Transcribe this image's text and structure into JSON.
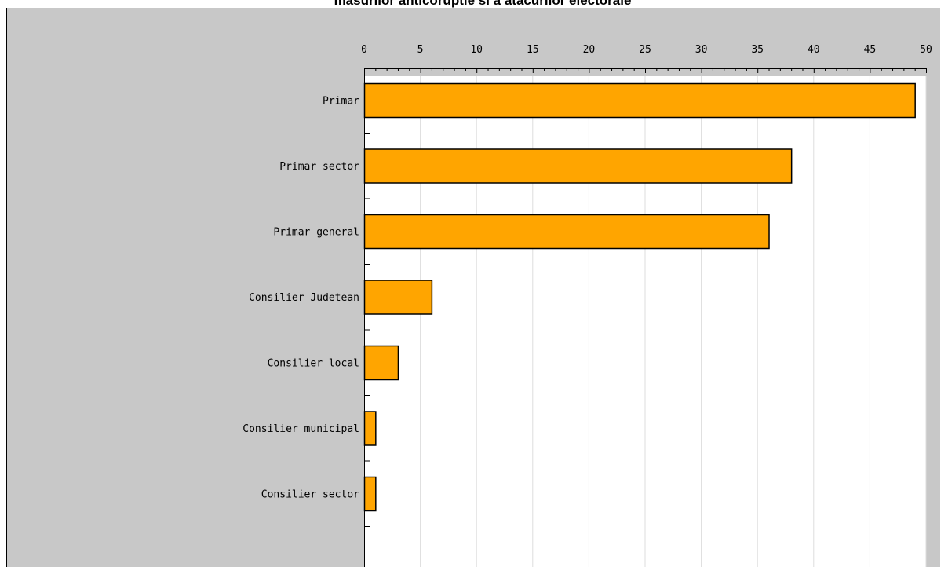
{
  "chart_data": {
    "type": "bar",
    "orientation": "horizontal",
    "title": "masurilor anticoruptie si a atacurilor electorale",
    "categories": [
      "Primar",
      "Primar sector",
      "Primar general",
      "Consilier Judetean",
      "Consilier local",
      "Consilier municipal",
      "Consilier sector"
    ],
    "values": [
      49,
      38,
      36,
      6,
      3,
      1,
      1
    ],
    "xlim": [
      0,
      50
    ],
    "x_ticks": [
      0,
      5,
      10,
      15,
      20,
      25,
      30,
      35,
      40,
      45,
      50
    ],
    "x_axis_position": "top",
    "grid": true,
    "legend": "none",
    "colors": {
      "bar": "#FFA500",
      "bar_border": "#000000",
      "margin_background": "#C8C8C8",
      "plot_background": "#FFFFFF",
      "grid": "#DDDDDD"
    }
  }
}
